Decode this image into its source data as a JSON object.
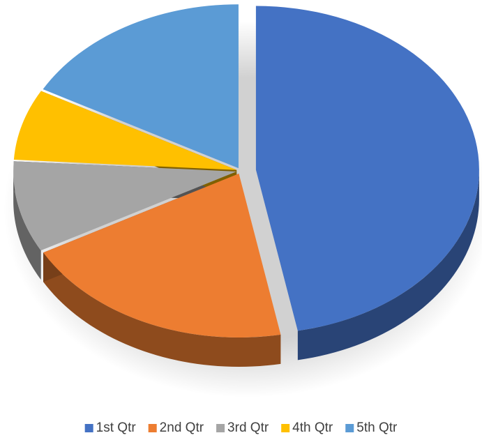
{
  "chart_data": {
    "type": "pie",
    "categories": [
      "1st Qtr",
      "2nd Qtr",
      "3rd Qtr",
      "4th Qtr",
      "5th Qtr"
    ],
    "values": [
      47,
      20,
      9,
      7,
      17
    ],
    "colors": [
      "#4472c4",
      "#ed7d31",
      "#a5a5a5",
      "#ffc000",
      "#5b9bd5"
    ],
    "legend": "bottom"
  }
}
